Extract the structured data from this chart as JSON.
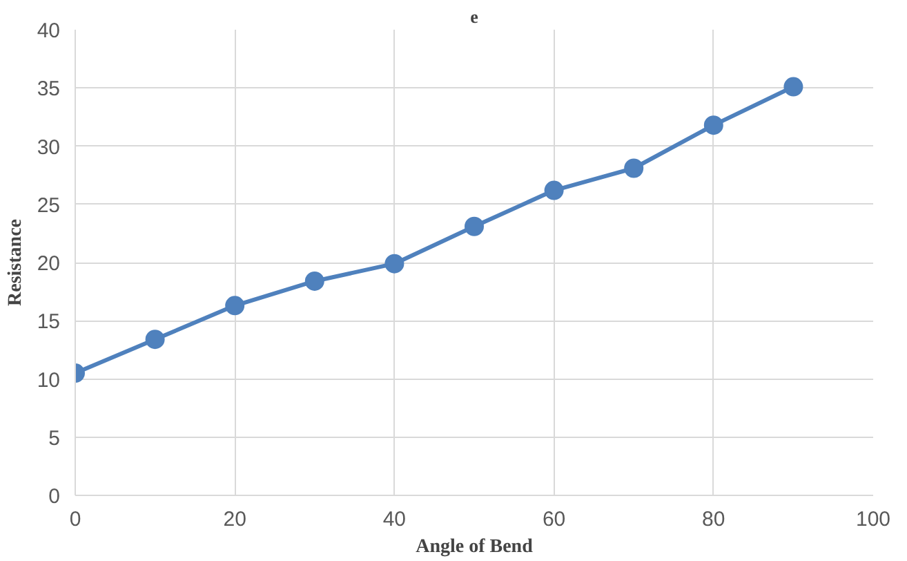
{
  "chart_data": {
    "type": "line",
    "title": "e",
    "xlabel": "Angle of Bend",
    "ylabel": "Resistance",
    "x": [
      0,
      10,
      20,
      30,
      40,
      50,
      60,
      70,
      80,
      90
    ],
    "series": [
      {
        "color": "#4f81bd",
        "values": [
          10.5,
          13.4,
          16.3,
          18.4,
          19.9,
          23.1,
          26.2,
          28.1,
          31.8,
          35.1
        ]
      }
    ],
    "xlim": [
      0,
      100
    ],
    "ylim": [
      0,
      40
    ],
    "xticks": [
      0,
      20,
      40,
      60,
      80,
      100
    ],
    "yticks": [
      0,
      5,
      10,
      15,
      20,
      25,
      30,
      35,
      40
    ],
    "grid": true,
    "marker": "circle",
    "line_style": "solid"
  }
}
